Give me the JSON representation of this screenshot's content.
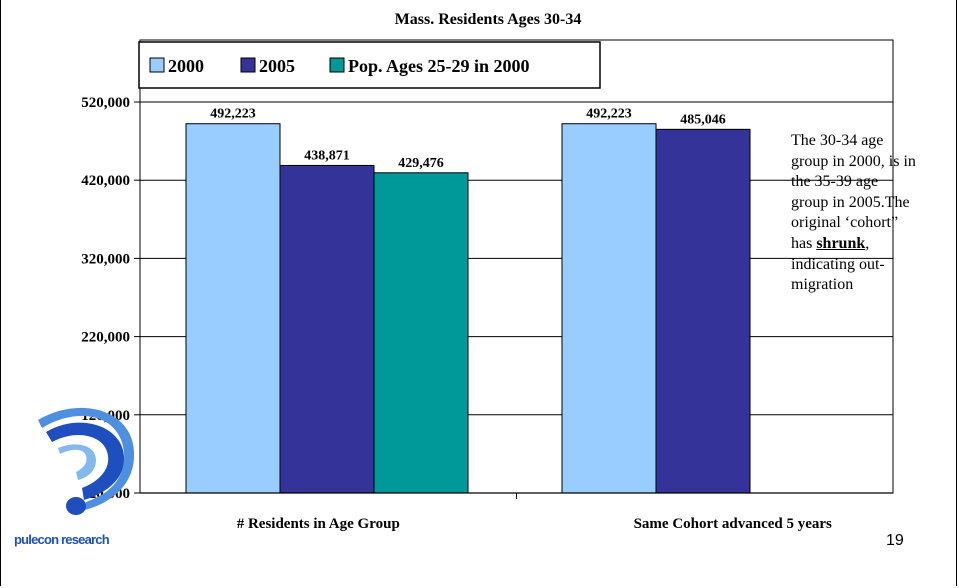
{
  "chart_data": {
    "type": "bar",
    "title": "Mass. Residents Ages 30-34",
    "categories": [
      "# Residents in Age Group",
      "Same Cohort advanced 5 years"
    ],
    "series": [
      {
        "name": "2000",
        "color": "#99ccff",
        "values": [
          492223,
          492223
        ],
        "labels": [
          "492,223",
          "492,223"
        ]
      },
      {
        "name": "2005",
        "color": "#333399",
        "values": [
          438871,
          485046
        ],
        "labels": [
          "438,871",
          "485,046"
        ]
      },
      {
        "name": "Pop. Ages 25-29 in 2000",
        "color": "#009999",
        "values": [
          429476,
          null
        ],
        "labels": [
          "429,476",
          ""
        ]
      }
    ],
    "y_ticks": [
      20000,
      120000,
      220000,
      320000,
      420000,
      520000
    ],
    "y_tick_labels": [
      "20,000",
      "120,000",
      "220,000",
      "320,000",
      "420,000",
      "520,000"
    ],
    "ylim": [
      20000,
      520000
    ],
    "grid": true,
    "legend_position": "top-left"
  },
  "annotation": {
    "text_before": "The 30-34 age group in 2000, is in the 35-39 age group in 2005.The original ‘cohort” has ",
    "emphasis": "shrunk",
    "text_after": ", indicating out-migration"
  },
  "slide_number": "19",
  "logo": {
    "text": "pulecon research",
    "icon": "question-mark-logo-icon",
    "color": "#1f4fbf"
  }
}
